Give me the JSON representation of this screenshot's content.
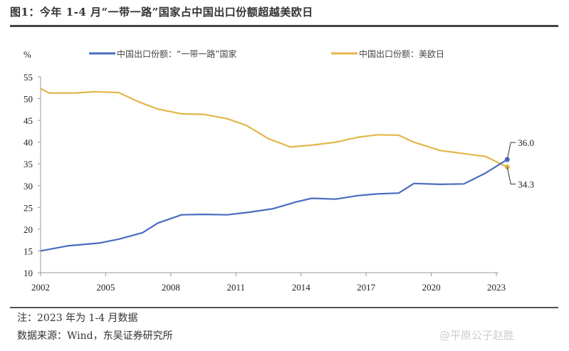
{
  "title": "图1：今年 1-4 月“一带一路”国家占中国出口份额超越美欧日",
  "note": "注：2023 年为 1-4 月数据",
  "source": "数据来源：Wind，东吴证券研究所",
  "watermark": "@平原公子赵胜",
  "chart_data": {
    "type": "line",
    "title": "",
    "ylabel": "%",
    "xlabel": "",
    "ylim": [
      10,
      55
    ],
    "xlim": [
      2002,
      2023.5
    ],
    "yticks": [
      "10",
      "15",
      "20",
      "25",
      "30",
      "35",
      "40",
      "45",
      "50",
      "55"
    ],
    "xticks": [
      "2002",
      "2005",
      "2008",
      "2011",
      "2014",
      "2017",
      "2020",
      "2023"
    ],
    "grid": false,
    "legend": "top",
    "series": [
      {
        "name": "中国出口份额：“一带一路”国家",
        "color": "#4a6cc0",
        "x": [
          2002,
          2003.3,
          2004.7,
          2005.6,
          2006.7,
          2007.4,
          2008.5,
          2009.5,
          2010.6,
          2011.6,
          2012.7,
          2013.8,
          2014.5,
          2015.6,
          2016.6,
          2017.5,
          2018.5,
          2019.2,
          2020.4,
          2021.5,
          2022.5,
          2023.5
        ],
        "y": [
          15.0,
          16.2,
          16.8,
          17.7,
          19.2,
          21.4,
          23.3,
          23.4,
          23.3,
          23.9,
          24.7,
          26.3,
          27.1,
          26.9,
          27.7,
          28.1,
          28.3,
          30.5,
          30.3,
          30.4,
          32.9,
          36.0
        ],
        "end_label": "36.0"
      },
      {
        "name": "中国出口份额：美欧日",
        "color": "#e3b64a",
        "x": [
          2002,
          2002.4,
          2003.6,
          2004.5,
          2005.6,
          2006.5,
          2007.4,
          2008.5,
          2009.5,
          2010.6,
          2011.5,
          2012.5,
          2013.5,
          2014.5,
          2015.6,
          2016.6,
          2017.5,
          2018.5,
          2019.2,
          2020.4,
          2021.6,
          2022.5,
          2023.5
        ],
        "y": [
          52.3,
          51.3,
          51.3,
          51.6,
          51.4,
          49.3,
          47.6,
          46.5,
          46.4,
          45.4,
          43.8,
          40.8,
          38.9,
          39.3,
          40.0,
          41.1,
          41.7,
          41.6,
          40.0,
          38.1,
          37.3,
          36.7,
          34.3
        ],
        "end_label": "34.3"
      }
    ]
  }
}
